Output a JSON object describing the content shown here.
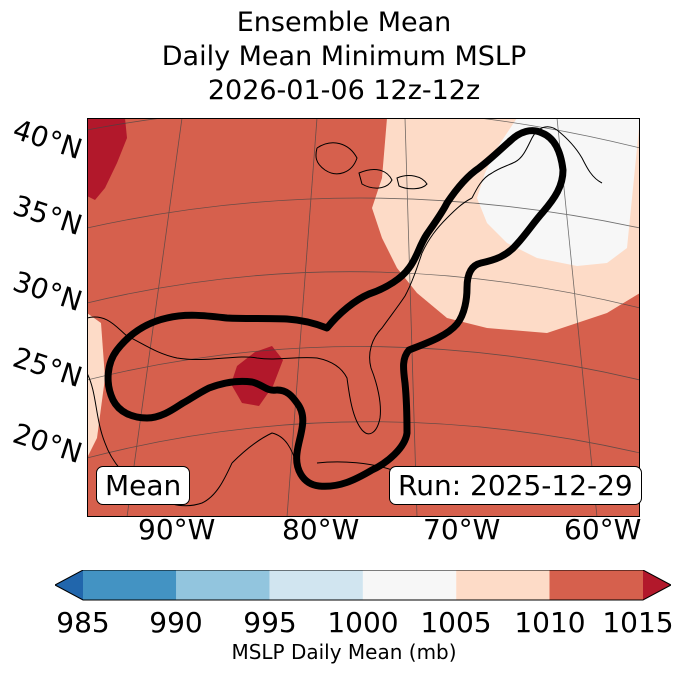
{
  "title": {
    "line1": "Ensemble Mean",
    "line2": "Daily Mean Minimum MSLP",
    "line3": "2026-01-06 12z-12z"
  },
  "map": {
    "lat_labels": [
      "40°N",
      "35°N",
      "30°N",
      "25°N",
      "20°N"
    ],
    "lon_labels": [
      "90°W",
      "80°W",
      "70°W",
      "60°W"
    ],
    "mean_box": "Mean",
    "run_box": "Run: 2025-12-29",
    "colors": {
      "ocean_band": "#d6604d",
      "band_1005_1010": "#fddbc7",
      "band_1000_1005": "#f7f7f7",
      "band_1015_plus": "#b2182b",
      "contour": "#000000",
      "coastline": "#000000",
      "gridline": "#444444"
    }
  },
  "colorbar": {
    "label": "MSLP Daily Mean (mb)",
    "ticks": [
      "985",
      "990",
      "995",
      "1000",
      "1005",
      "1010",
      "1015"
    ],
    "bins": [
      {
        "range": "<985",
        "color": "#2166ac"
      },
      {
        "range": "985-990",
        "color": "#4393c3"
      },
      {
        "range": "990-995",
        "color": "#92c5de"
      },
      {
        "range": "995-1000",
        "color": "#d1e5f0"
      },
      {
        "range": "1000-1005",
        "color": "#f7f7f7"
      },
      {
        "range": "1005-1010",
        "color": "#fddbc7"
      },
      {
        "range": "1010-1015",
        "color": "#d6604d"
      },
      {
        "range": ">1015",
        "color": "#b2182b"
      }
    ]
  }
}
